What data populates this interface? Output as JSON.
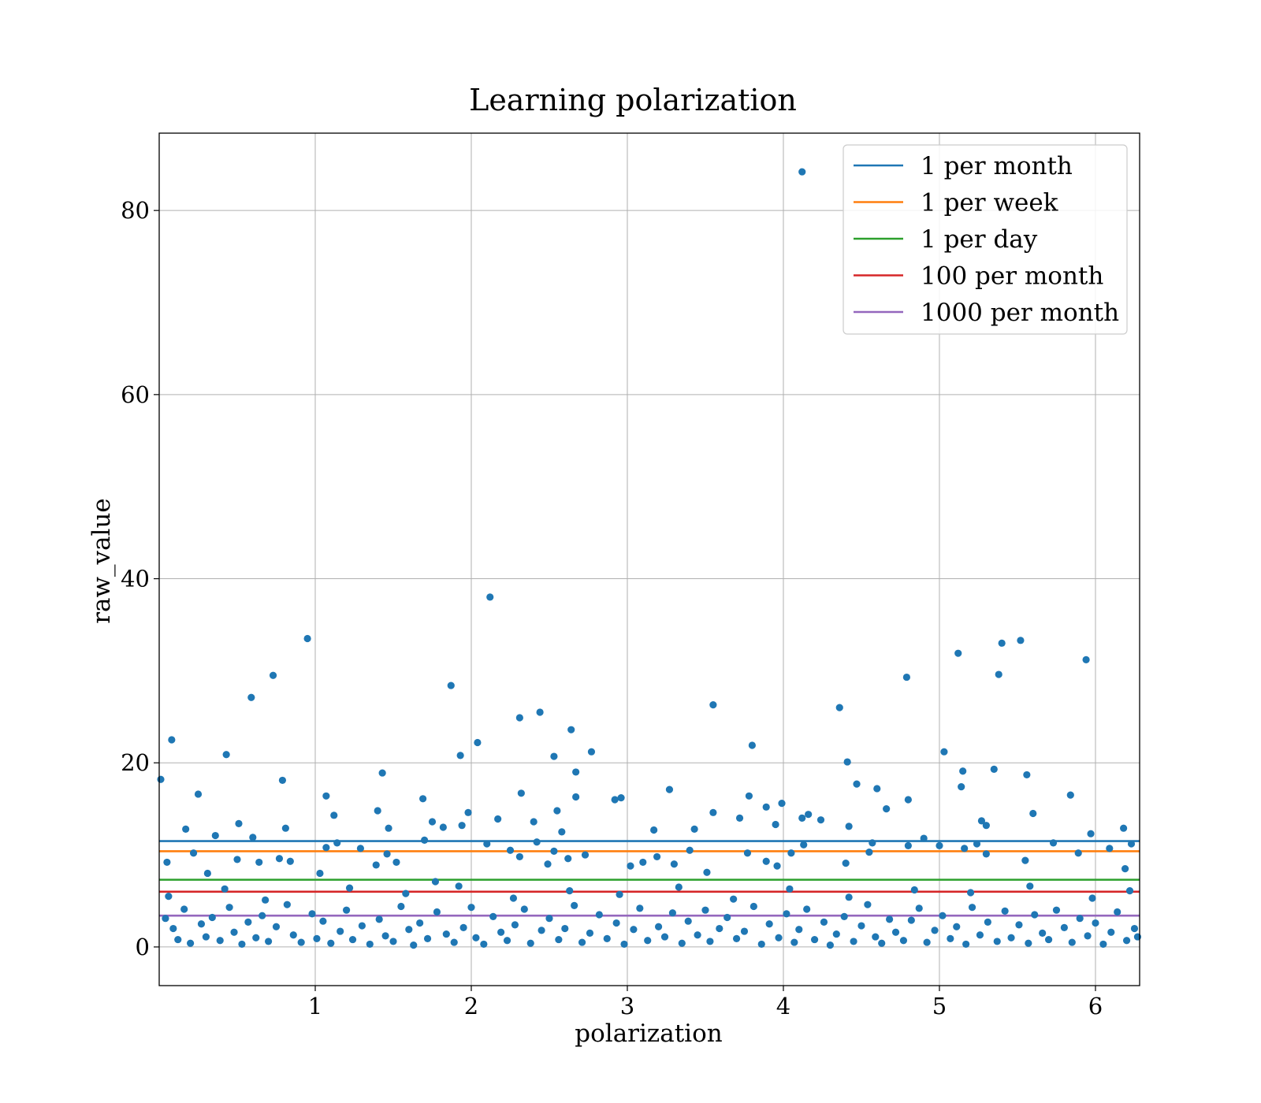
{
  "chart_data": {
    "type": "scatter",
    "title": "Learning polarization",
    "xlabel": "polarization",
    "ylabel": "raw_value",
    "xlim": [
      0,
      6.283
    ],
    "ylim": [
      -4.2,
      88.4
    ],
    "xticks": [
      1,
      2,
      3,
      4,
      5,
      6
    ],
    "yticks": [
      0,
      20,
      40,
      60,
      80
    ],
    "grid": true,
    "legend_position": "top-right",
    "point_color": "#1f77b4",
    "hlines": [
      {
        "name": "1 per month",
        "value": 11.5,
        "color": "#1f77b4"
      },
      {
        "name": "1 per week",
        "value": 10.4,
        "color": "#ff7f0e"
      },
      {
        "name": "1 per day",
        "value": 7.3,
        "color": "#2ca02c"
      },
      {
        "name": "100 per month",
        "value": 6.0,
        "color": "#d62728"
      },
      {
        "name": "1000 per month",
        "value": 3.4,
        "color": "#9467bd"
      }
    ],
    "points": [
      [
        0.01,
        18.2
      ],
      [
        0.08,
        22.5
      ],
      [
        0.17,
        12.8
      ],
      [
        0.25,
        16.6
      ],
      [
        0.36,
        12.1
      ],
      [
        0.43,
        20.9
      ],
      [
        0.51,
        13.4
      ],
      [
        0.59,
        27.1
      ],
      [
        0.6,
        11.9
      ],
      [
        0.73,
        29.5
      ],
      [
        0.79,
        18.1
      ],
      [
        0.81,
        12.9
      ],
      [
        0.95,
        33.5
      ],
      [
        1.07,
        16.4
      ],
      [
        1.12,
        14.3
      ],
      [
        1.14,
        11.3
      ],
      [
        1.4,
        14.8
      ],
      [
        1.43,
        18.9
      ],
      [
        1.47,
        12.9
      ],
      [
        1.69,
        16.1
      ],
      [
        1.75,
        13.6
      ],
      [
        1.82,
        13.0
      ],
      [
        1.87,
        28.4
      ],
      [
        1.93,
        20.8
      ],
      [
        1.94,
        13.2
      ],
      [
        1.98,
        14.6
      ],
      [
        2.04,
        22.2
      ],
      [
        2.12,
        38.0
      ],
      [
        2.17,
        13.9
      ],
      [
        2.31,
        24.9
      ],
      [
        2.32,
        16.7
      ],
      [
        2.4,
        13.6
      ],
      [
        2.44,
        25.5
      ],
      [
        2.53,
        20.7
      ],
      [
        2.55,
        14.8
      ],
      [
        2.58,
        12.5
      ],
      [
        2.64,
        23.6
      ],
      [
        2.67,
        19.0
      ],
      [
        2.67,
        16.3
      ],
      [
        2.77,
        21.2
      ],
      [
        2.92,
        16.0
      ],
      [
        2.96,
        16.2
      ],
      [
        3.17,
        12.7
      ],
      [
        3.27,
        17.1
      ],
      [
        3.43,
        12.8
      ],
      [
        3.55,
        26.3
      ],
      [
        3.55,
        14.6
      ],
      [
        3.72,
        14.0
      ],
      [
        3.78,
        16.4
      ],
      [
        3.8,
        21.9
      ],
      [
        3.89,
        15.2
      ],
      [
        3.95,
        13.3
      ],
      [
        3.99,
        15.6
      ],
      [
        4.12,
        84.2
      ],
      [
        4.12,
        14.0
      ],
      [
        4.16,
        14.4
      ],
      [
        4.24,
        13.8
      ],
      [
        4.36,
        26.0
      ],
      [
        4.41,
        20.1
      ],
      [
        4.42,
        13.1
      ],
      [
        4.47,
        17.7
      ],
      [
        4.6,
        17.2
      ],
      [
        4.66,
        15.0
      ],
      [
        4.79,
        29.3
      ],
      [
        4.8,
        16.0
      ],
      [
        5.03,
        21.2
      ],
      [
        5.12,
        31.9
      ],
      [
        5.14,
        17.4
      ],
      [
        5.15,
        19.1
      ],
      [
        5.27,
        13.7
      ],
      [
        5.3,
        13.2
      ],
      [
        5.35,
        19.3
      ],
      [
        5.38,
        29.6
      ],
      [
        5.4,
        33.0
      ],
      [
        5.52,
        33.3
      ],
      [
        5.56,
        18.7
      ],
      [
        5.6,
        14.5
      ],
      [
        5.84,
        16.5
      ],
      [
        5.94,
        31.2
      ],
      [
        5.97,
        12.3
      ],
      [
        6.18,
        12.9
      ],
      [
        6.23,
        11.2
      ],
      [
        0.05,
        9.2
      ],
      [
        0.22,
        10.2
      ],
      [
        0.31,
        8.0
      ],
      [
        0.5,
        9.5
      ],
      [
        0.64,
        9.2
      ],
      [
        0.77,
        9.6
      ],
      [
        0.84,
        9.3
      ],
      [
        1.03,
        8.0
      ],
      [
        1.07,
        10.8
      ],
      [
        1.29,
        10.7
      ],
      [
        1.39,
        8.9
      ],
      [
        1.46,
        10.1
      ],
      [
        1.52,
        9.2
      ],
      [
        1.7,
        11.6
      ],
      [
        1.77,
        7.1
      ],
      [
        2.1,
        11.2
      ],
      [
        2.25,
        10.5
      ],
      [
        2.31,
        9.8
      ],
      [
        2.42,
        11.4
      ],
      [
        2.49,
        9.0
      ],
      [
        2.53,
        10.4
      ],
      [
        2.62,
        9.6
      ],
      [
        2.73,
        10.0
      ],
      [
        3.02,
        8.8
      ],
      [
        3.1,
        9.2
      ],
      [
        3.19,
        9.8
      ],
      [
        3.3,
        9.0
      ],
      [
        3.4,
        10.5
      ],
      [
        3.51,
        8.1
      ],
      [
        3.77,
        10.2
      ],
      [
        3.89,
        9.3
      ],
      [
        3.96,
        8.8
      ],
      [
        4.05,
        10.2
      ],
      [
        4.13,
        11.1
      ],
      [
        4.4,
        9.1
      ],
      [
        4.55,
        10.3
      ],
      [
        4.57,
        11.3
      ],
      [
        4.8,
        11.0
      ],
      [
        4.9,
        11.8
      ],
      [
        5.0,
        11.0
      ],
      [
        5.16,
        10.7
      ],
      [
        5.24,
        11.2
      ],
      [
        5.3,
        10.1
      ],
      [
        5.55,
        9.4
      ],
      [
        5.73,
        11.3
      ],
      [
        5.89,
        10.2
      ],
      [
        6.09,
        10.7
      ],
      [
        6.19,
        8.5
      ],
      [
        0.04,
        3.1
      ],
      [
        0.09,
        2.0
      ],
      [
        0.12,
        0.8
      ],
      [
        0.16,
        4.1
      ],
      [
        0.2,
        0.4
      ],
      [
        0.27,
        2.5
      ],
      [
        0.3,
        1.1
      ],
      [
        0.34,
        3.2
      ],
      [
        0.39,
        0.7
      ],
      [
        0.45,
        4.3
      ],
      [
        0.48,
        1.6
      ],
      [
        0.53,
        0.3
      ],
      [
        0.57,
        2.7
      ],
      [
        0.62,
        1.0
      ],
      [
        0.66,
        3.4
      ],
      [
        0.7,
        0.6
      ],
      [
        0.75,
        2.2
      ],
      [
        0.82,
        4.6
      ],
      [
        0.86,
        1.3
      ],
      [
        0.91,
        0.5
      ],
      [
        0.98,
        3.6
      ],
      [
        1.01,
        0.9
      ],
      [
        1.05,
        2.8
      ],
      [
        1.1,
        0.4
      ],
      [
        1.16,
        1.7
      ],
      [
        1.2,
        4.0
      ],
      [
        1.24,
        0.8
      ],
      [
        1.3,
        2.3
      ],
      [
        1.35,
        0.3
      ],
      [
        1.41,
        3.0
      ],
      [
        1.45,
        1.2
      ],
      [
        1.5,
        0.6
      ],
      [
        1.55,
        4.4
      ],
      [
        1.6,
        1.9
      ],
      [
        1.63,
        0.2
      ],
      [
        1.67,
        2.6
      ],
      [
        1.72,
        0.9
      ],
      [
        1.78,
        3.8
      ],
      [
        1.84,
        1.4
      ],
      [
        1.89,
        0.5
      ],
      [
        1.95,
        2.1
      ],
      [
        2.0,
        4.3
      ],
      [
        2.03,
        1.0
      ],
      [
        2.08,
        0.3
      ],
      [
        2.14,
        3.3
      ],
      [
        2.19,
        1.6
      ],
      [
        2.23,
        0.7
      ],
      [
        2.28,
        2.4
      ],
      [
        2.34,
        4.1
      ],
      [
        2.38,
        0.4
      ],
      [
        2.45,
        1.8
      ],
      [
        2.5,
        3.1
      ],
      [
        2.56,
        0.8
      ],
      [
        2.6,
        2.0
      ],
      [
        2.66,
        4.5
      ],
      [
        2.71,
        0.5
      ],
      [
        2.76,
        1.5
      ],
      [
        2.82,
        3.5
      ],
      [
        2.87,
        0.9
      ],
      [
        2.93,
        2.6
      ],
      [
        2.98,
        0.3
      ],
      [
        3.04,
        1.9
      ],
      [
        3.08,
        4.2
      ],
      [
        3.13,
        0.7
      ],
      [
        3.2,
        2.2
      ],
      [
        3.24,
        1.1
      ],
      [
        3.29,
        3.7
      ],
      [
        3.35,
        0.4
      ],
      [
        3.39,
        2.8
      ],
      [
        3.45,
        1.3
      ],
      [
        3.5,
        4.0
      ],
      [
        3.53,
        0.6
      ],
      [
        3.59,
        2.0
      ],
      [
        3.64,
        3.2
      ],
      [
        3.7,
        0.9
      ],
      [
        3.75,
        1.7
      ],
      [
        3.81,
        4.4
      ],
      [
        3.86,
        0.3
      ],
      [
        3.91,
        2.5
      ],
      [
        3.97,
        1.0
      ],
      [
        4.02,
        3.6
      ],
      [
        4.07,
        0.5
      ],
      [
        4.1,
        1.9
      ],
      [
        4.15,
        4.1
      ],
      [
        4.2,
        0.8
      ],
      [
        4.26,
        2.7
      ],
      [
        4.3,
        0.2
      ],
      [
        4.34,
        1.4
      ],
      [
        4.39,
        3.3
      ],
      [
        4.45,
        0.6
      ],
      [
        4.5,
        2.3
      ],
      [
        4.54,
        4.6
      ],
      [
        4.59,
        1.1
      ],
      [
        4.63,
        0.4
      ],
      [
        4.68,
        3.0
      ],
      [
        4.72,
        1.6
      ],
      [
        4.77,
        0.7
      ],
      [
        4.82,
        2.9
      ],
      [
        4.87,
        4.2
      ],
      [
        4.92,
        0.5
      ],
      [
        4.97,
        1.8
      ],
      [
        5.02,
        3.4
      ],
      [
        5.07,
        0.9
      ],
      [
        5.11,
        2.2
      ],
      [
        5.17,
        0.3
      ],
      [
        5.21,
        4.3
      ],
      [
        5.26,
        1.3
      ],
      [
        5.31,
        2.7
      ],
      [
        5.37,
        0.6
      ],
      [
        5.42,
        3.9
      ],
      [
        5.46,
        1.0
      ],
      [
        5.51,
        2.4
      ],
      [
        5.57,
        0.4
      ],
      [
        5.61,
        3.5
      ],
      [
        5.66,
        1.5
      ],
      [
        5.7,
        0.8
      ],
      [
        5.75,
        4.0
      ],
      [
        5.8,
        2.1
      ],
      [
        5.85,
        0.5
      ],
      [
        5.9,
        3.1
      ],
      [
        5.95,
        1.2
      ],
      [
        6.0,
        2.6
      ],
      [
        6.05,
        0.3
      ],
      [
        6.1,
        1.6
      ],
      [
        6.14,
        3.8
      ],
      [
        6.2,
        0.7
      ],
      [
        6.25,
        2.0
      ],
      [
        6.27,
        1.1
      ],
      [
        0.06,
        5.5
      ],
      [
        0.42,
        6.3
      ],
      [
        0.68,
        5.1
      ],
      [
        1.22,
        6.4
      ],
      [
        1.58,
        5.8
      ],
      [
        1.92,
        6.6
      ],
      [
        2.27,
        5.3
      ],
      [
        2.63,
        6.1
      ],
      [
        2.95,
        5.7
      ],
      [
        3.33,
        6.5
      ],
      [
        3.68,
        5.2
      ],
      [
        4.04,
        6.3
      ],
      [
        4.42,
        5.4
      ],
      [
        4.84,
        6.2
      ],
      [
        5.2,
        5.9
      ],
      [
        5.58,
        6.6
      ],
      [
        5.98,
        5.3
      ],
      [
        6.22,
        6.1
      ]
    ]
  }
}
